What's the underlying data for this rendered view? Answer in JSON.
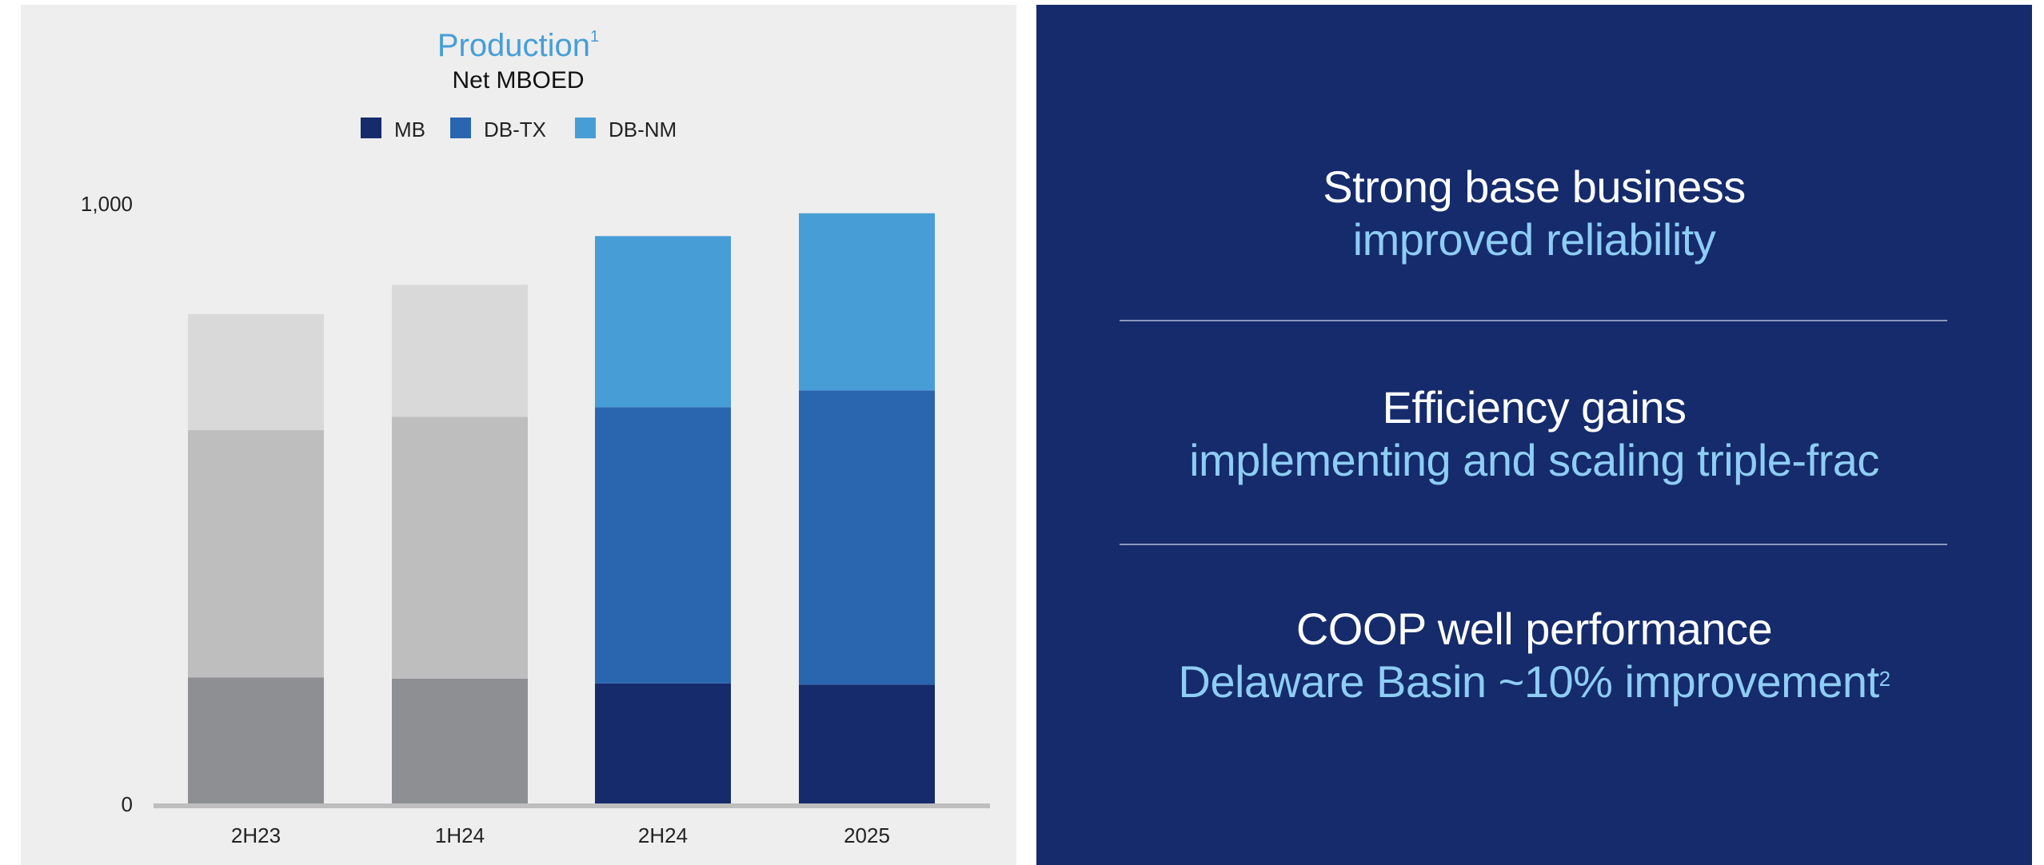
{
  "chart_data": {
    "type": "bar",
    "stacked": true,
    "title": "Production",
    "title_superscript": "1",
    "subtitle": "Net MBOED",
    "categories": [
      "2H23",
      "1H24",
      "2H24",
      "2025"
    ],
    "ylim": [
      0,
      1000
    ],
    "yticks": [
      "0",
      "1,000"
    ],
    "legend_position": "top-center",
    "legend": [
      {
        "label": "MB",
        "color": "#152b6b"
      },
      {
        "label": "DB-TX",
        "color": "#2a66b0"
      },
      {
        "label": "DB-NM",
        "color": "#479ed6"
      }
    ],
    "series": [
      {
        "name": "MB",
        "values": [
          210,
          208,
          200,
          198
        ],
        "colors": [
          "#8e8f93",
          "#8e8f93",
          "#152b6b",
          "#152b6b"
        ]
      },
      {
        "name": "DB-TX",
        "values": [
          412,
          436,
          460,
          490
        ],
        "colors": [
          "#bebebe",
          "#bebebe",
          "#2a66b0",
          "#2a66b0"
        ]
      },
      {
        "name": "DB-NM",
        "values": [
          193,
          220,
          285,
          295
        ],
        "colors": [
          "#d9d9d9",
          "#d9d9d9",
          "#479ed6",
          "#479ed6"
        ]
      }
    ]
  },
  "right_panel": {
    "sections": [
      {
        "heading": "Strong base business",
        "detail": "improved reliability",
        "superscript": ""
      },
      {
        "heading": "Efficiency gains",
        "detail": "implementing and scaling triple-frac",
        "superscript": ""
      },
      {
        "heading": "COOP well performance",
        "detail": "Delaware Basin ~10% improvement",
        "superscript": "2"
      }
    ]
  }
}
